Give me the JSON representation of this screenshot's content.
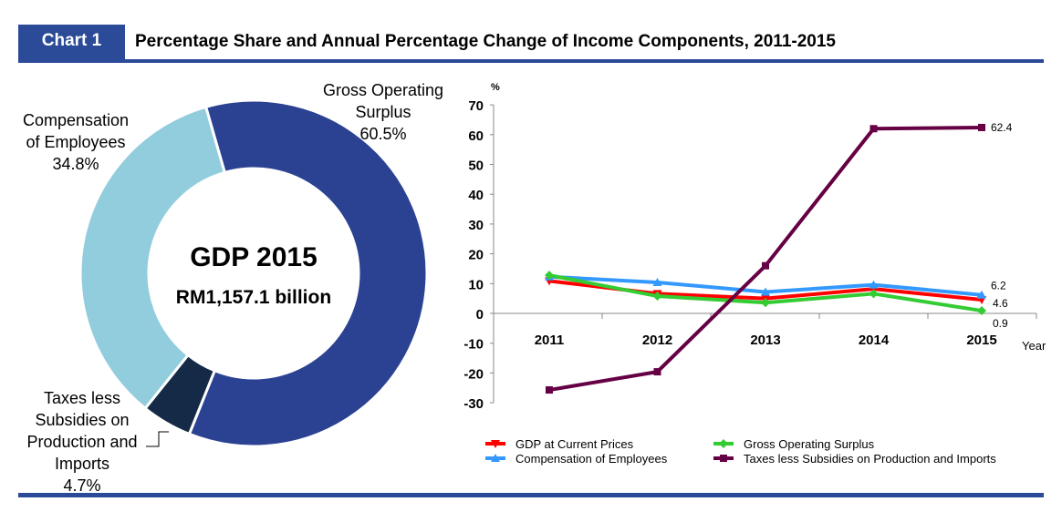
{
  "header": {
    "tag": "Chart 1",
    "title": "Percentage Share and Annual Percentage Change of Income Components, 2011-2015"
  },
  "donut": {
    "center_title": "GDP 2015",
    "center_value": "RM1,157.1 billion",
    "slices": [
      {
        "name": "Gross Operating Surplus",
        "label_lines": [
          "Gross Operating",
          "Surplus"
        ],
        "pct_label": "60.5%",
        "value": 60.5,
        "color": "#2b4292"
      },
      {
        "name": "Taxes less Subsidies on Production and Imports",
        "label_lines": [
          "Taxes less",
          "Subsidies on",
          "Production and",
          "Imports"
        ],
        "pct_label": "4.7%",
        "value": 4.7,
        "color": "#152a46"
      },
      {
        "name": "Compensation of Employees",
        "label_lines": [
          "Compensation",
          "of Employees"
        ],
        "pct_label": "34.8%",
        "value": 34.8,
        "color": "#92cddd"
      }
    ]
  },
  "chart_data": {
    "type": "line",
    "title": "",
    "xlabel": "Year",
    "ylabel": "%",
    "categories": [
      "2011",
      "2012",
      "2013",
      "2014",
      "2015"
    ],
    "ylim": [
      -30,
      70
    ],
    "yticks": [
      -30,
      -20,
      -10,
      0,
      10,
      20,
      30,
      40,
      50,
      60,
      70
    ],
    "series": [
      {
        "name": "GDP at Current Prices",
        "color": "#ff0000",
        "marker": "triangle-down",
        "values": [
          10.9,
          6.6,
          5.0,
          8.2,
          4.6
        ],
        "end_label": "4.6"
      },
      {
        "name": "Compensation of Employees",
        "color": "#3399ff",
        "marker": "triangle-up",
        "values": [
          12.3,
          10.4,
          7.2,
          9.6,
          6.2
        ],
        "end_label": "6.2"
      },
      {
        "name": "Gross Operating Surplus",
        "color": "#33cc33",
        "marker": "diamond",
        "values": [
          12.8,
          5.8,
          3.6,
          6.6,
          0.9
        ],
        "end_label": "0.9"
      },
      {
        "name": "Taxes less Subsidies on Production and Imports",
        "color": "#660044",
        "marker": "square",
        "values": [
          -25.7,
          -19.6,
          16.0,
          62.0,
          62.4
        ],
        "end_label": "62.4"
      }
    ],
    "legend_position": "bottom"
  }
}
